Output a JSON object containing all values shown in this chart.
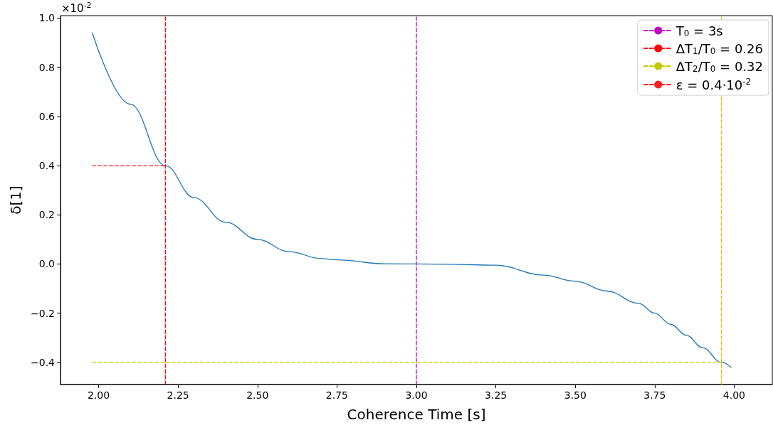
{
  "chart_data": {
    "type": "line",
    "xlabel": "Coherence Time [s]",
    "ylabel": "δ[1]",
    "annotations": [
      "×10$^{-2}$"
    ],
    "xlim": [
      1.88,
      4.12
    ],
    "ylim": [
      -0.49,
      1.01
    ],
    "xticks": [
      {
        "value": 2,
        "label": "2.00"
      },
      {
        "value": 2.25,
        "label": "2.25"
      },
      {
        "value": 2.5,
        "label": "2.50"
      },
      {
        "value": 2.75,
        "label": "2.75"
      },
      {
        "value": 3,
        "label": "3.00"
      },
      {
        "value": 3.25,
        "label": "3.25"
      },
      {
        "value": 3.5,
        "label": "3.50"
      },
      {
        "value": 3.75,
        "label": "3.75"
      },
      {
        "value": 4,
        "label": "4.00"
      }
    ],
    "yticks": [
      {
        "value": -0.4,
        "label": "−0.4"
      },
      {
        "value": -0.2,
        "label": "−0.2"
      },
      {
        "value": 0,
        "label": "0.0"
      },
      0.2,
      0.4,
      0.6,
      0.8,
      {
        "value": 1,
        "label": "1.0"
      }
    ],
    "grid": false,
    "legend": "top right",
    "marker": "none",
    "series": [
      {
        "color": "#1f77b4",
        "line_style": "solid",
        "x": [
          1.98,
          2.1,
          2.21,
          2.3,
          2.4,
          2.5,
          2.6,
          2.7,
          2.75,
          2.9,
          3.0,
          3.1,
          3.25,
          3.4,
          3.5,
          3.6,
          3.7,
          3.75,
          3.8,
          3.85,
          3.9,
          3.96,
          3.99
        ],
        "values": [
          0.94,
          0.65,
          0.4,
          0.27,
          0.17,
          0.1,
          0.05,
          0.022,
          0.017,
          0.001,
          0,
          -0.001,
          -0.005,
          -0.045,
          -0.07,
          -0.11,
          -0.16,
          -0.2,
          -0.245,
          -0.29,
          -0.34,
          -0.4,
          -0.42
        ]
      },
      {
        "name": "T$_{0}$ = 3s",
        "color": "#bf00bf",
        "line_style": "dashed",
        "x": [
          3,
          3
        ],
        "values": [
          -0.49,
          1.01
        ]
      },
      {
        "name": "ΔT$_{1}$/T$_{0}$ = 0.26",
        "color": "#ff0000",
        "line_style": "dashed",
        "x": [
          2.21,
          2.21
        ],
        "values": [
          -0.49,
          1.01
        ]
      },
      {
        "name": "ΔT$_{2}$/T$_{0}$ = 0.32",
        "color": "#c8c800",
        "line_style": "dashed",
        "x": [
          1.98,
          3.96,
          null,
          3.96,
          3.96
        ],
        "values": [
          -0.4,
          -0.4,
          null,
          -0.49,
          1.01
        ]
      },
      {
        "name": "ε = 0.4·10$^{-2}$",
        "color": "#ff2020",
        "line_style": "dashed",
        "x": [
          1.98,
          2.21
        ],
        "values": [
          0.4,
          0.4
        ]
      }
    ]
  }
}
